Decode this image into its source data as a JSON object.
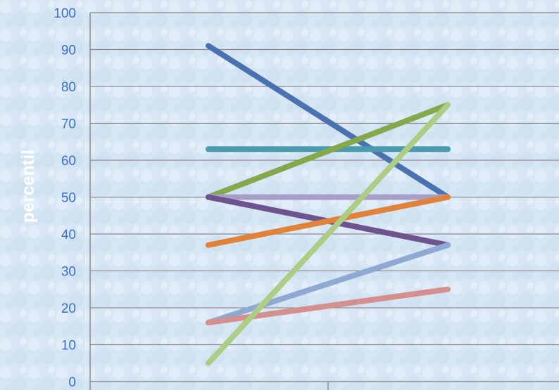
{
  "chart_data": {
    "type": "line",
    "title": "",
    "xlabel": "",
    "ylabel": "percentil",
    "ylim": [
      0,
      100
    ],
    "yticks": [
      "0",
      "10",
      "20",
      "30",
      "40",
      "50",
      "60",
      "70",
      "80",
      "90",
      "100"
    ],
    "x": [
      1,
      2
    ],
    "grid": true,
    "series": [
      {
        "color": "#4a72b0",
        "values": [
          91,
          50
        ]
      },
      {
        "color": "#4a9bb0",
        "values": [
          63,
          63
        ]
      },
      {
        "color": "#84a84a",
        "values": [
          50,
          75
        ]
      },
      {
        "color": "#a89fc8",
        "values": [
          50,
          50
        ]
      },
      {
        "color": "#6e548f",
        "values": [
          50,
          37
        ]
      },
      {
        "color": "#e0823a",
        "values": [
          37,
          50
        ]
      },
      {
        "color": "#8fa9d3",
        "values": [
          16,
          37
        ]
      },
      {
        "color": "#d68f8f",
        "values": [
          16,
          25
        ]
      },
      {
        "color": "#adcd84",
        "values": [
          5,
          75
        ]
      }
    ]
  }
}
